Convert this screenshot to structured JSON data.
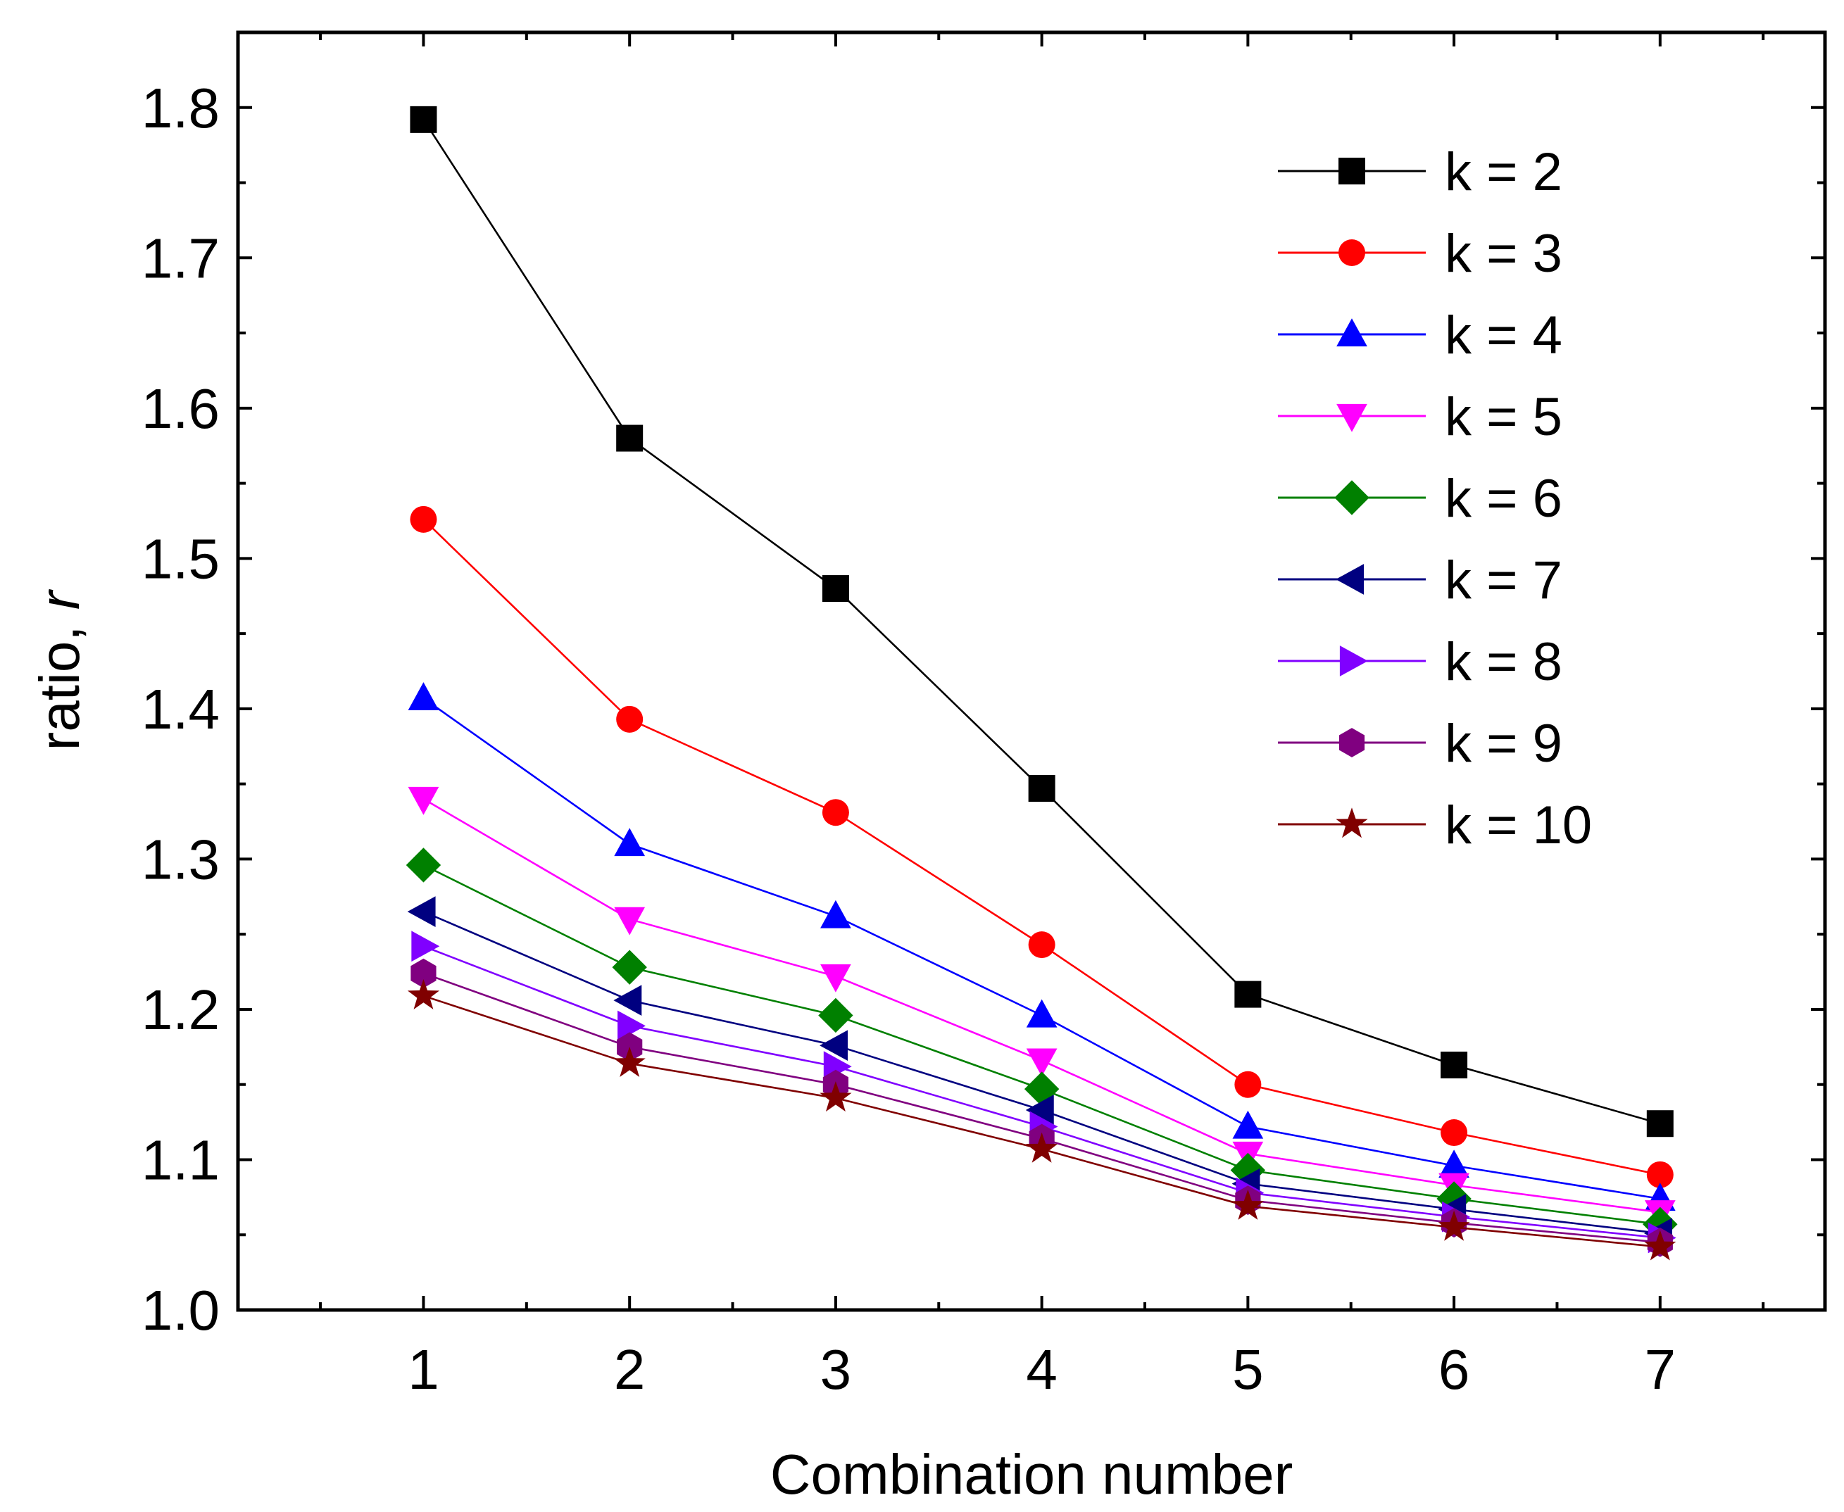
{
  "chart_data": {
    "type": "line",
    "title": "",
    "xlabel": "Combination number",
    "ylabel_text": "ratio, ",
    "ylabel_var": "r",
    "xlim": [
      0.1,
      7.8
    ],
    "ylim": [
      1.0,
      1.85
    ],
    "x_ticks": [
      "1",
      "2",
      "3",
      "4",
      "5",
      "6",
      "7"
    ],
    "y_ticks": [
      "1.0",
      "1.1",
      "1.2",
      "1.3",
      "1.4",
      "1.5",
      "1.6",
      "1.7",
      "1.8"
    ],
    "legend_position": "top-right",
    "x": [
      1,
      2,
      3,
      4,
      5,
      6,
      7
    ],
    "series": [
      {
        "name": "k = 2",
        "color": "#000000",
        "marker": "square",
        "values": [
          1.792,
          1.58,
          1.48,
          1.347,
          1.21,
          1.163,
          1.124
        ]
      },
      {
        "name": "k = 3",
        "color": "#ff0000",
        "marker": "circle",
        "values": [
          1.526,
          1.393,
          1.331,
          1.243,
          1.15,
          1.118,
          1.09
        ]
      },
      {
        "name": "k = 4",
        "color": "#0000ff",
        "marker": "triangle-up",
        "values": [
          1.407,
          1.31,
          1.262,
          1.196,
          1.122,
          1.096,
          1.074
        ]
      },
      {
        "name": "k = 5",
        "color": "#ff00ff",
        "marker": "triangle-down",
        "values": [
          1.34,
          1.26,
          1.222,
          1.166,
          1.104,
          1.083,
          1.065
        ]
      },
      {
        "name": "k = 6",
        "color": "#008000",
        "marker": "diamond",
        "values": [
          1.296,
          1.228,
          1.196,
          1.147,
          1.093,
          1.074,
          1.057
        ]
      },
      {
        "name": "k = 7",
        "color": "#000080",
        "marker": "triangle-left",
        "values": [
          1.265,
          1.206,
          1.176,
          1.133,
          1.084,
          1.067,
          1.051
        ]
      },
      {
        "name": "k = 8",
        "color": "#8000ff",
        "marker": "triangle-right",
        "values": [
          1.242,
          1.189,
          1.162,
          1.122,
          1.078,
          1.062,
          1.048
        ]
      },
      {
        "name": "k = 9",
        "color": "#800080",
        "marker": "hexagon",
        "values": [
          1.224,
          1.175,
          1.15,
          1.114,
          1.073,
          1.058,
          1.045
        ]
      },
      {
        "name": "k = 10",
        "color": "#800000",
        "marker": "star",
        "values": [
          1.209,
          1.164,
          1.141,
          1.107,
          1.069,
          1.055,
          1.042
        ]
      }
    ]
  }
}
